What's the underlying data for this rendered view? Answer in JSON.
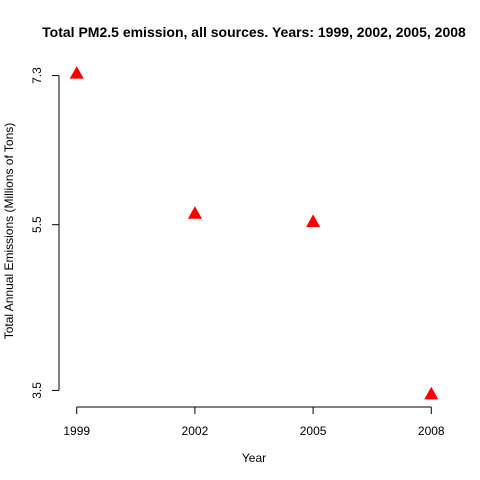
{
  "chart_data": {
    "type": "scatter",
    "title": "Total PM2.5 emission, all sources. Years: 1999, 2002, 2005, 2008",
    "xlabel": "Year",
    "ylabel": "Total Annual Emissions (Millions of Tons)",
    "x": [
      1999,
      2002,
      2005,
      2008
    ],
    "y": [
      7.33,
      5.64,
      5.54,
      3.46
    ],
    "x_ticks": [
      "1999",
      "2002",
      "2005",
      "2008"
    ],
    "y_ticks": [
      "3.5",
      "5.5",
      "7.3"
    ],
    "xlim": [
      1998.55,
      2008.45
    ],
    "ylim": [
      3.3,
      7.5
    ],
    "grid": false,
    "marker": "triangle",
    "marker_color": "#ff0000"
  }
}
